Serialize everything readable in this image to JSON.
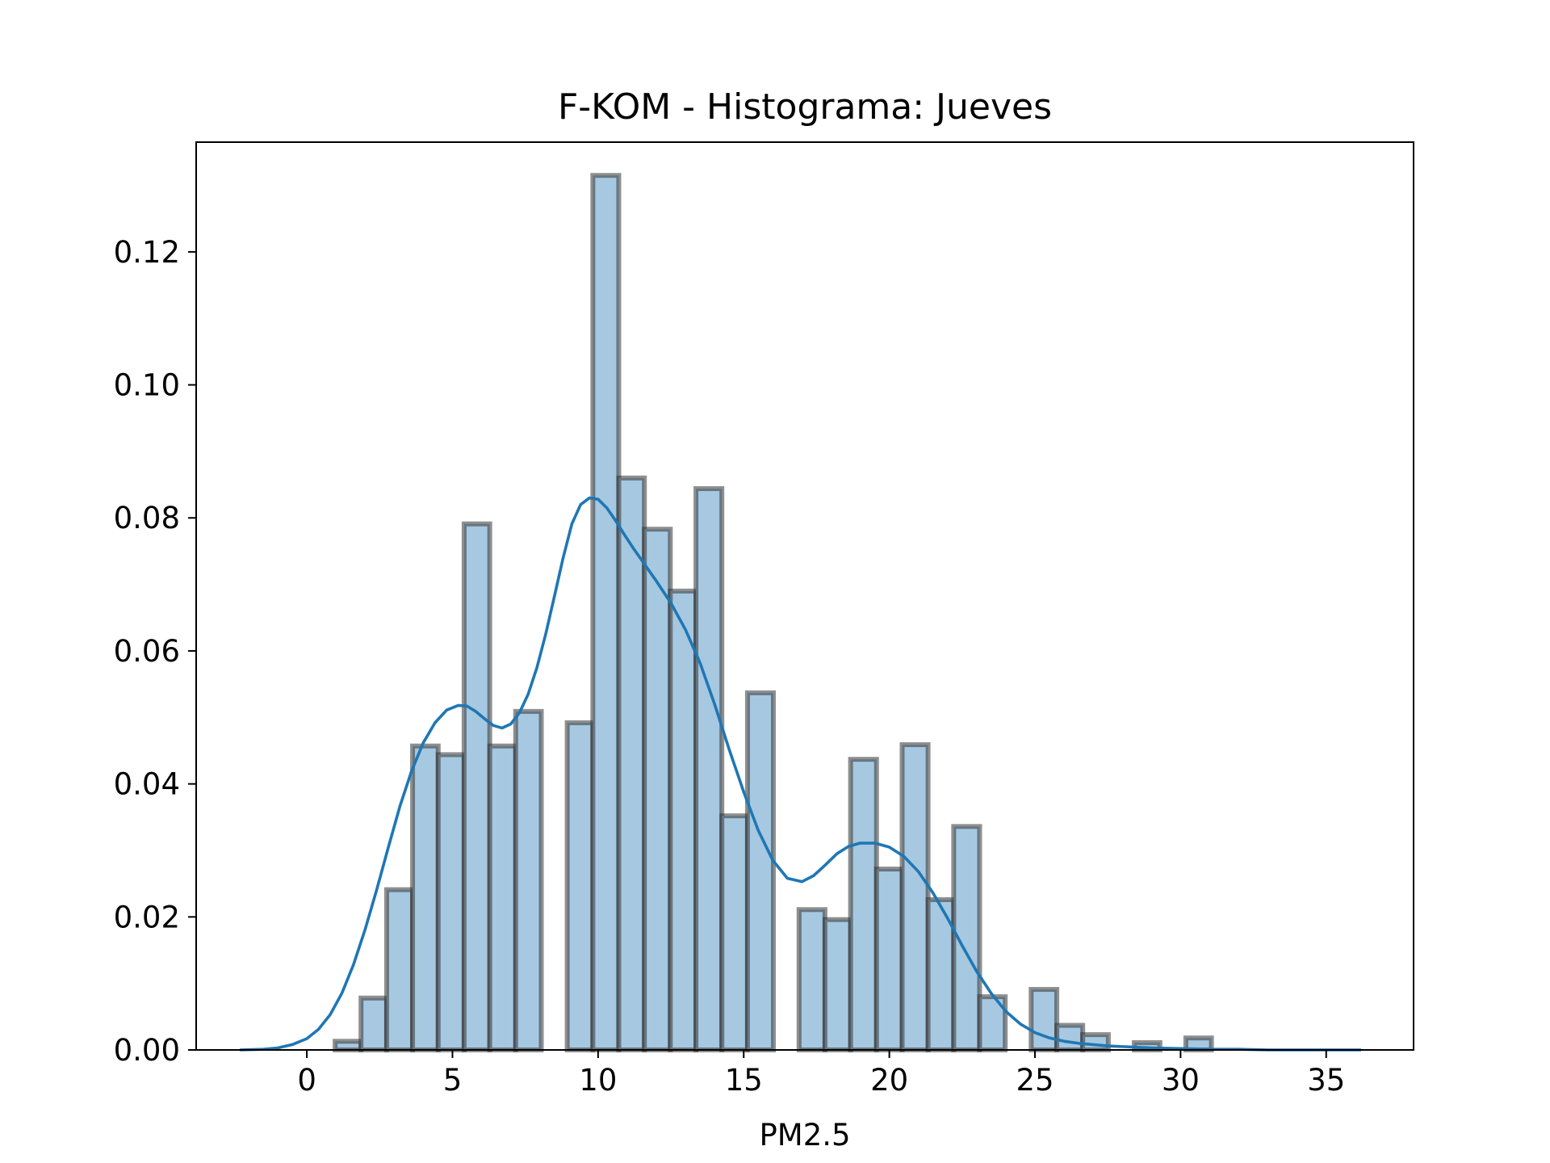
{
  "chart_data": {
    "type": "bar",
    "title": "F-KOM - Histograma: Jueves",
    "xlabel": "PM2.5",
    "ylabel": "",
    "xlim": [
      -3.8,
      38.0
    ],
    "ylim": [
      0,
      0.1365
    ],
    "xticks": [
      0,
      5,
      10,
      15,
      20,
      25,
      30,
      35
    ],
    "xtick_labels": [
      "0",
      "5",
      "10",
      "15",
      "20",
      "25",
      "30",
      "35"
    ],
    "yticks": [
      0.0,
      0.02,
      0.04,
      0.06,
      0.08,
      0.1,
      0.12
    ],
    "ytick_labels": [
      "0.00",
      "0.02",
      "0.04",
      "0.06",
      "0.08",
      "0.10",
      "0.12"
    ],
    "grid": false,
    "bin_width": 0.885,
    "bins": [
      {
        "x0": 0.97,
        "x1": 1.86,
        "density": 0.0013
      },
      {
        "x0": 1.86,
        "x1": 2.74,
        "density": 0.0078
      },
      {
        "x0": 2.74,
        "x1": 3.63,
        "density": 0.0241
      },
      {
        "x0": 3.63,
        "x1": 4.51,
        "density": 0.0457
      },
      {
        "x0": 4.51,
        "x1": 5.4,
        "density": 0.0444
      },
      {
        "x0": 5.4,
        "x1": 6.28,
        "density": 0.0791
      },
      {
        "x0": 6.28,
        "x1": 7.17,
        "density": 0.0457
      },
      {
        "x0": 7.17,
        "x1": 8.05,
        "density": 0.0509
      },
      {
        "x0": 8.05,
        "x1": 8.94,
        "density": 0.0
      },
      {
        "x0": 8.94,
        "x1": 9.82,
        "density": 0.0492
      },
      {
        "x0": 9.82,
        "x1": 10.71,
        "density": 0.1315
      },
      {
        "x0": 10.71,
        "x1": 11.59,
        "density": 0.086
      },
      {
        "x0": 11.59,
        "x1": 12.48,
        "density": 0.0783
      },
      {
        "x0": 12.48,
        "x1": 13.36,
        "density": 0.069
      },
      {
        "x0": 13.36,
        "x1": 14.25,
        "density": 0.0844
      },
      {
        "x0": 14.25,
        "x1": 15.13,
        "density": 0.0352
      },
      {
        "x0": 15.13,
        "x1": 16.02,
        "density": 0.0537
      },
      {
        "x0": 16.02,
        "x1": 16.9,
        "density": 0.0
      },
      {
        "x0": 16.9,
        "x1": 17.79,
        "density": 0.0211
      },
      {
        "x0": 17.79,
        "x1": 18.67,
        "density": 0.0196
      },
      {
        "x0": 18.67,
        "x1": 19.56,
        "density": 0.0437
      },
      {
        "x0": 19.56,
        "x1": 20.44,
        "density": 0.0272
      },
      {
        "x0": 20.44,
        "x1": 21.33,
        "density": 0.0459
      },
      {
        "x0": 21.33,
        "x1": 22.21,
        "density": 0.0226
      },
      {
        "x0": 22.21,
        "x1": 23.1,
        "density": 0.0336
      },
      {
        "x0": 23.1,
        "x1": 23.98,
        "density": 0.008
      },
      {
        "x0": 23.98,
        "x1": 24.87,
        "density": 0.0
      },
      {
        "x0": 24.87,
        "x1": 25.75,
        "density": 0.0091
      },
      {
        "x0": 25.75,
        "x1": 26.64,
        "density": 0.0037
      },
      {
        "x0": 26.64,
        "x1": 27.52,
        "density": 0.0023
      },
      {
        "x0": 27.52,
        "x1": 28.41,
        "density": 0.0
      },
      {
        "x0": 28.41,
        "x1": 29.29,
        "density": 0.0011
      },
      {
        "x0": 29.29,
        "x1": 30.18,
        "density": 0.0
      },
      {
        "x0": 30.18,
        "x1": 31.06,
        "density": 0.0018
      }
    ],
    "kde": {
      "x": [
        -2.3,
        -1.5,
        -1.0,
        -0.5,
        0.0,
        0.4,
        0.8,
        1.2,
        1.6,
        2.0,
        2.4,
        2.8,
        3.2,
        3.6,
        4.0,
        4.4,
        4.8,
        5.2,
        5.5,
        5.8,
        6.1,
        6.4,
        6.7,
        7.0,
        7.3,
        7.6,
        7.9,
        8.2,
        8.5,
        8.8,
        9.1,
        9.4,
        9.7,
        10.0,
        10.3,
        10.6,
        10.9,
        11.2,
        11.6,
        12.0,
        12.5,
        13.0,
        13.5,
        14.0,
        14.5,
        15.0,
        15.5,
        16.0,
        16.5,
        17.0,
        17.4,
        17.8,
        18.2,
        18.6,
        19.0,
        19.5,
        20.0,
        20.5,
        21.0,
        21.5,
        22.0,
        22.5,
        23.0,
        23.5,
        24.0,
        24.5,
        25.0,
        25.5,
        26.0,
        26.5,
        27.0,
        27.5,
        28.0,
        29.0,
        30.0,
        31.0,
        32.0,
        33.0,
        34.0,
        35.0,
        36.2
      ],
      "y": [
        0.0,
        0.0001,
        0.0003,
        0.0008,
        0.0017,
        0.0031,
        0.0053,
        0.0085,
        0.0128,
        0.0181,
        0.0241,
        0.0305,
        0.0367,
        0.042,
        0.0462,
        0.0492,
        0.0511,
        0.0518,
        0.0517,
        0.0509,
        0.0498,
        0.0488,
        0.0484,
        0.049,
        0.0507,
        0.0535,
        0.0575,
        0.0625,
        0.0682,
        0.074,
        0.0791,
        0.082,
        0.083,
        0.0828,
        0.0815,
        0.0796,
        0.0775,
        0.0755,
        0.073,
        0.0705,
        0.0672,
        0.0632,
        0.0582,
        0.052,
        0.0452,
        0.0388,
        0.033,
        0.0285,
        0.0258,
        0.0253,
        0.0262,
        0.0278,
        0.0295,
        0.0306,
        0.0311,
        0.0311,
        0.0305,
        0.0291,
        0.0268,
        0.0236,
        0.0198,
        0.0157,
        0.0118,
        0.0085,
        0.0058,
        0.0039,
        0.0026,
        0.0018,
        0.0013,
        0.001,
        0.0008,
        0.0006,
        0.0005,
        0.0003,
        0.0002,
        0.0001,
        0.0001,
        0.0,
        0.0,
        0.0,
        0.0
      ]
    },
    "colors": {
      "bar_fill": "#a6c8e0",
      "bar_edge": "#333333",
      "kde_line": "#1f77b4",
      "axes": "#000000"
    }
  }
}
